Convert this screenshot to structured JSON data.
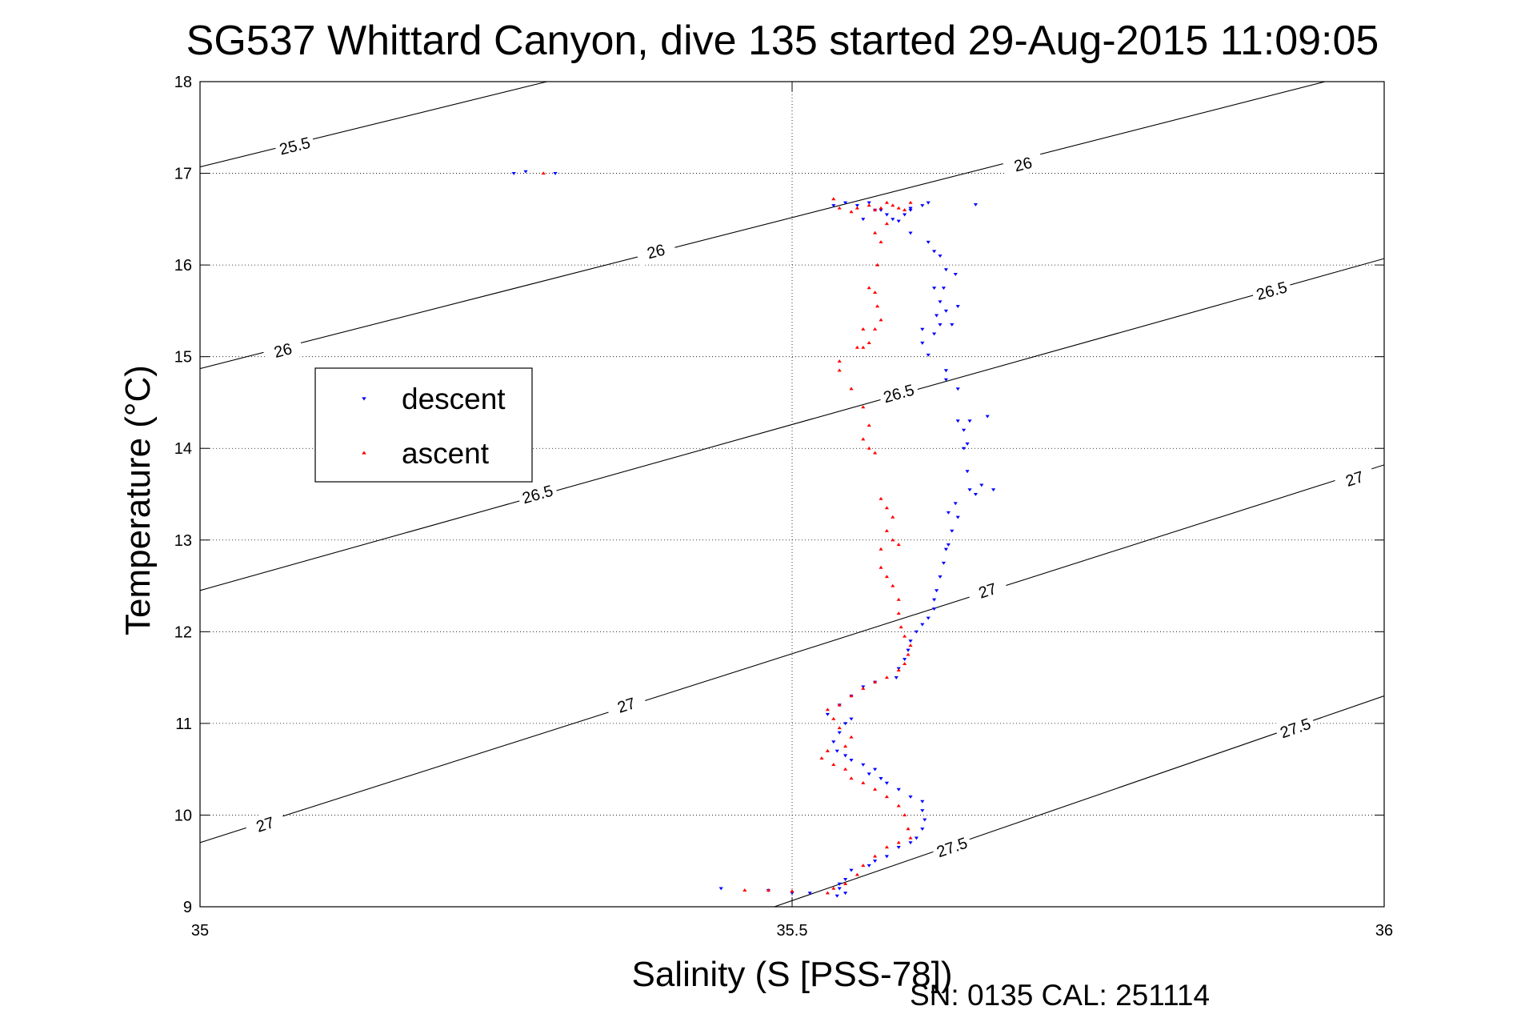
{
  "chart_data": {
    "type": "scatter",
    "title": "SG537 Whittard Canyon, dive 135 started 29-Aug-2015 11:09:05",
    "xlabel": "Salinity (S [PSS-78])",
    "ylabel": "Temperature (°C)",
    "xlim": [
      35,
      36
    ],
    "ylim": [
      9,
      18
    ],
    "x_ticks": [
      "35",
      "35.5",
      "36"
    ],
    "y_ticks": [
      "9",
      "10",
      "11",
      "12",
      "13",
      "14",
      "15",
      "16",
      "17",
      "18"
    ],
    "grid": "dotted",
    "legend_position": "left",
    "footer": "SN: 0135  CAL: 251114",
    "isopycnals": [
      {
        "sigma": "25.5",
        "points": [
          [
            35.0,
            17.07
          ],
          [
            35.293,
            18.0
          ]
        ],
        "label_at": [
          35.08,
          17.3
        ]
      },
      {
        "sigma": "26",
        "points": [
          [
            35.0,
            14.87
          ],
          [
            35.95,
            18.0
          ]
        ],
        "label_at": [
          35.07,
          15.07
        ]
      },
      {
        "sigma": "26",
        "points": [
          [
            35.0,
            14.87
          ],
          [
            35.95,
            18.0
          ]
        ],
        "label_at": [
          35.385,
          16.15
        ]
      },
      {
        "sigma": "26",
        "points": [
          [
            35.0,
            14.87
          ],
          [
            35.95,
            18.0
          ]
        ],
        "label_at": [
          35.695,
          17.1
        ]
      },
      {
        "sigma": "26.5",
        "points": [
          [
            35.0,
            12.45
          ],
          [
            36.0,
            16.07
          ]
        ],
        "label_at": [
          35.285,
          13.5
        ]
      },
      {
        "sigma": "26.5",
        "points": [
          [
            35.0,
            12.45
          ],
          [
            36.0,
            16.07
          ]
        ],
        "label_at": [
          35.59,
          14.6
        ]
      },
      {
        "sigma": "26.5",
        "points": [
          [
            35.0,
            12.45
          ],
          [
            36.0,
            16.07
          ]
        ],
        "label_at": [
          35.905,
          15.72
        ]
      },
      {
        "sigma": "27",
        "points": [
          [
            35.0,
            9.7
          ],
          [
            36.0,
            13.82
          ]
        ],
        "label_at": [
          35.055,
          9.9
        ]
      },
      {
        "sigma": "27",
        "points": [
          [
            35.0,
            9.7
          ],
          [
            36.0,
            13.82
          ]
        ],
        "label_at": [
          35.36,
          11.2
        ]
      },
      {
        "sigma": "27",
        "points": [
          [
            35.0,
            9.7
          ],
          [
            36.0,
            13.82
          ]
        ],
        "label_at": [
          35.665,
          12.45
        ]
      },
      {
        "sigma": "27",
        "points": [
          [
            35.0,
            9.7
          ],
          [
            36.0,
            13.82
          ]
        ],
        "label_at": [
          35.975,
          13.67
        ]
      },
      {
        "sigma": "27.5",
        "points": [
          [
            35.485,
            9.0
          ],
          [
            36.0,
            11.3
          ]
        ],
        "label_at": [
          35.635,
          9.65
        ]
      },
      {
        "sigma": "27.5",
        "points": [
          [
            35.485,
            9.0
          ],
          [
            36.0,
            11.3
          ]
        ],
        "label_at": [
          35.925,
          10.95
        ]
      }
    ],
    "series": [
      {
        "name": "descent",
        "color": "#0000ff",
        "marker": "triangle-down",
        "points": [
          [
            35.275,
            17.02
          ],
          [
            35.3,
            17.0
          ],
          [
            35.265,
            17.0
          ],
          [
            35.535,
            16.65
          ],
          [
            35.545,
            16.68
          ],
          [
            35.555,
            16.65
          ],
          [
            35.565,
            16.68
          ],
          [
            35.57,
            16.6
          ],
          [
            35.58,
            16.55
          ],
          [
            35.585,
            16.5
          ],
          [
            35.56,
            16.5
          ],
          [
            35.575,
            16.6
          ],
          [
            35.6,
            16.62
          ],
          [
            35.61,
            16.65
          ],
          [
            35.615,
            16.68
          ],
          [
            35.655,
            16.66
          ],
          [
            35.59,
            16.48
          ],
          [
            35.595,
            16.55
          ],
          [
            35.6,
            16.6
          ],
          [
            35.6,
            16.35
          ],
          [
            35.615,
            16.25
          ],
          [
            35.62,
            16.15
          ],
          [
            35.625,
            16.1
          ],
          [
            35.63,
            15.95
          ],
          [
            35.628,
            15.75
          ],
          [
            35.625,
            15.6
          ],
          [
            35.63,
            15.5
          ],
          [
            35.625,
            15.35
          ],
          [
            35.62,
            15.25
          ],
          [
            35.61,
            15.15
          ],
          [
            35.615,
            15.02
          ],
          [
            35.635,
            15.35
          ],
          [
            35.64,
            15.55
          ],
          [
            35.638,
            15.9
          ],
          [
            35.62,
            15.75
          ],
          [
            35.622,
            15.45
          ],
          [
            35.61,
            15.3
          ],
          [
            35.63,
            14.85
          ],
          [
            35.63,
            14.75
          ],
          [
            35.64,
            14.65
          ],
          [
            35.64,
            14.3
          ],
          [
            35.645,
            14.2
          ],
          [
            35.648,
            14.05
          ],
          [
            35.65,
            14.3
          ],
          [
            35.665,
            14.35
          ],
          [
            35.645,
            14.0
          ],
          [
            35.648,
            13.75
          ],
          [
            35.65,
            13.55
          ],
          [
            35.655,
            13.5
          ],
          [
            35.66,
            13.6
          ],
          [
            35.67,
            13.55
          ],
          [
            35.638,
            13.4
          ],
          [
            35.632,
            13.3
          ],
          [
            35.64,
            13.25
          ],
          [
            35.635,
            13.1
          ],
          [
            35.632,
            12.95
          ],
          [
            35.63,
            12.9
          ],
          [
            35.628,
            12.75
          ],
          [
            35.625,
            12.6
          ],
          [
            35.622,
            12.45
          ],
          [
            35.62,
            12.35
          ],
          [
            35.62,
            12.25
          ],
          [
            35.615,
            12.15
          ],
          [
            35.61,
            12.08
          ],
          [
            35.605,
            12.0
          ],
          [
            35.6,
            11.9
          ],
          [
            35.598,
            11.8
          ],
          [
            35.595,
            11.7
          ],
          [
            35.59,
            11.6
          ],
          [
            35.588,
            11.5
          ],
          [
            35.57,
            11.45
          ],
          [
            35.56,
            11.4
          ],
          [
            35.55,
            11.3
          ],
          [
            35.54,
            11.2
          ],
          [
            35.53,
            11.1
          ],
          [
            35.55,
            11.05
          ],
          [
            35.545,
            11.0
          ],
          [
            35.54,
            10.9
          ],
          [
            35.535,
            10.8
          ],
          [
            35.538,
            10.7
          ],
          [
            35.545,
            10.65
          ],
          [
            35.55,
            10.6
          ],
          [
            35.56,
            10.55
          ],
          [
            35.57,
            10.5
          ],
          [
            35.565,
            10.45
          ],
          [
            35.575,
            10.4
          ],
          [
            35.58,
            10.35
          ],
          [
            35.59,
            10.28
          ],
          [
            35.6,
            10.2
          ],
          [
            35.61,
            10.15
          ],
          [
            35.61,
            10.05
          ],
          [
            35.612,
            9.95
          ],
          [
            35.61,
            9.85
          ],
          [
            35.605,
            9.75
          ],
          [
            35.6,
            9.7
          ],
          [
            35.59,
            9.65
          ],
          [
            35.58,
            9.55
          ],
          [
            35.57,
            9.5
          ],
          [
            35.565,
            9.45
          ],
          [
            35.55,
            9.4
          ],
          [
            35.545,
            9.3
          ],
          [
            35.54,
            9.25
          ],
          [
            35.54,
            9.2
          ],
          [
            35.545,
            9.15
          ],
          [
            35.538,
            9.12
          ],
          [
            35.44,
            9.2
          ],
          [
            35.48,
            9.18
          ],
          [
            35.5,
            9.15
          ],
          [
            35.515,
            9.15
          ]
        ]
      },
      {
        "name": "ascent",
        "color": "#ff0000",
        "marker": "triangle-up",
        "points": [
          [
            35.29,
            17.0
          ],
          [
            35.535,
            16.72
          ],
          [
            35.54,
            16.62
          ],
          [
            35.55,
            16.58
          ],
          [
            35.555,
            16.62
          ],
          [
            35.565,
            16.65
          ],
          [
            35.57,
            16.6
          ],
          [
            35.575,
            16.62
          ],
          [
            35.58,
            16.68
          ],
          [
            35.585,
            16.65
          ],
          [
            35.59,
            16.62
          ],
          [
            35.595,
            16.6
          ],
          [
            35.6,
            16.68
          ],
          [
            35.58,
            16.45
          ],
          [
            35.57,
            16.35
          ],
          [
            35.575,
            16.25
          ],
          [
            35.572,
            16.0
          ],
          [
            35.565,
            15.75
          ],
          [
            35.57,
            15.7
          ],
          [
            35.572,
            15.55
          ],
          [
            35.575,
            15.4
          ],
          [
            35.57,
            15.3
          ],
          [
            35.565,
            15.15
          ],
          [
            35.56,
            15.1
          ],
          [
            35.56,
            15.3
          ],
          [
            35.555,
            15.1
          ],
          [
            35.54,
            14.95
          ],
          [
            35.54,
            14.85
          ],
          [
            35.55,
            14.65
          ],
          [
            35.56,
            14.45
          ],
          [
            35.565,
            14.25
          ],
          [
            35.56,
            14.1
          ],
          [
            35.565,
            14.0
          ],
          [
            35.57,
            13.95
          ],
          [
            35.575,
            13.45
          ],
          [
            35.58,
            13.35
          ],
          [
            35.585,
            13.25
          ],
          [
            35.58,
            13.1
          ],
          [
            35.585,
            13.0
          ],
          [
            35.59,
            12.95
          ],
          [
            35.575,
            12.9
          ],
          [
            35.575,
            12.7
          ],
          [
            35.58,
            12.6
          ],
          [
            35.585,
            12.5
          ],
          [
            35.59,
            12.35
          ],
          [
            35.59,
            12.2
          ],
          [
            35.592,
            12.05
          ],
          [
            35.595,
            11.95
          ],
          [
            35.6,
            11.85
          ],
          [
            35.598,
            11.75
          ],
          [
            35.595,
            11.65
          ],
          [
            35.59,
            11.58
          ],
          [
            35.58,
            11.5
          ],
          [
            35.57,
            11.45
          ],
          [
            35.56,
            11.38
          ],
          [
            35.55,
            11.3
          ],
          [
            35.54,
            11.2
          ],
          [
            35.53,
            11.15
          ],
          [
            35.535,
            11.05
          ],
          [
            35.54,
            10.95
          ],
          [
            35.55,
            10.85
          ],
          [
            35.545,
            10.75
          ],
          [
            35.53,
            10.7
          ],
          [
            35.525,
            10.62
          ],
          [
            35.535,
            10.55
          ],
          [
            35.545,
            10.5
          ],
          [
            35.55,
            10.4
          ],
          [
            35.56,
            10.35
          ],
          [
            35.57,
            10.28
          ],
          [
            35.58,
            10.2
          ],
          [
            35.59,
            10.1
          ],
          [
            35.595,
            10.0
          ],
          [
            35.598,
            9.85
          ],
          [
            35.6,
            9.75
          ],
          [
            35.59,
            9.7
          ],
          [
            35.58,
            9.65
          ],
          [
            35.57,
            9.55
          ],
          [
            35.56,
            9.45
          ],
          [
            35.555,
            9.35
          ],
          [
            35.545,
            9.25
          ],
          [
            35.535,
            9.2
          ],
          [
            35.53,
            9.15
          ],
          [
            35.48,
            9.18
          ],
          [
            35.5,
            9.17
          ],
          [
            35.46,
            9.18
          ]
        ]
      }
    ]
  }
}
